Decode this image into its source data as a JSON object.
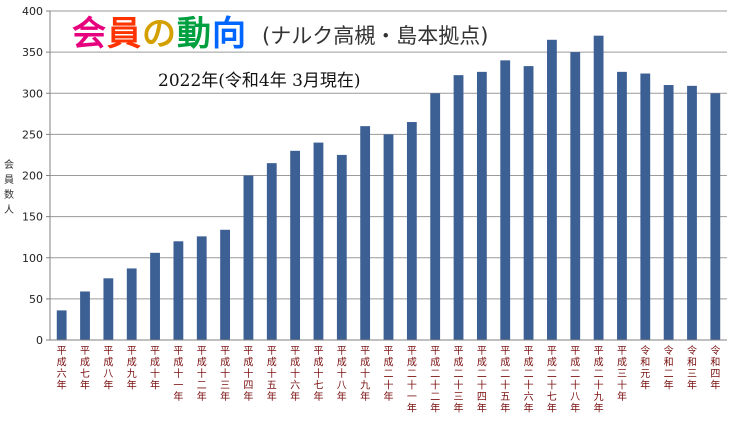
{
  "chart_data": {
    "type": "bar",
    "title": "会員の動向",
    "title_suffix": "(ナルク高槻・島本拠点)",
    "subtitle": "2022年(令和4年 3月現在)",
    "ylabel": "会員数 人",
    "xlabel": "",
    "ylim": [
      0,
      400
    ],
    "ytick_step": 50,
    "yticks": [
      "0",
      "50",
      "100",
      "150",
      "200",
      "250",
      "300",
      "350",
      "400"
    ],
    "grid": true,
    "bar_color": "#3c5f94",
    "title_colors": [
      "#e6007e",
      "#ff3300",
      "#d4a000",
      "#00a040",
      "#0066ff",
      "#8a2be2"
    ],
    "categories": [
      "平成六年",
      "平成七年",
      "平成八年",
      "平成九年",
      "平成十年",
      "平成十一年",
      "平成十二年",
      "平成十三年",
      "平成十四年",
      "平成十五年",
      "平成十六年",
      "平成十七年",
      "平成十八年",
      "平成十九年",
      "平成二十年",
      "平成二十一年",
      "平成二十二年",
      "平成二十三年",
      "平成二十四年",
      "平成二十五年",
      "平成二十六年",
      "平成二十七年",
      "平成二十八年",
      "平成二十九年",
      "平成三十年",
      "令和元年",
      "令和二年",
      "令和三年",
      "令和四年"
    ],
    "values": [
      36,
      59,
      75,
      87,
      106,
      120,
      126,
      134,
      200,
      215,
      230,
      240,
      225,
      260,
      250,
      265,
      300,
      322,
      326,
      340,
      333,
      365,
      350,
      370,
      326,
      324,
      310,
      309,
      300
    ]
  }
}
